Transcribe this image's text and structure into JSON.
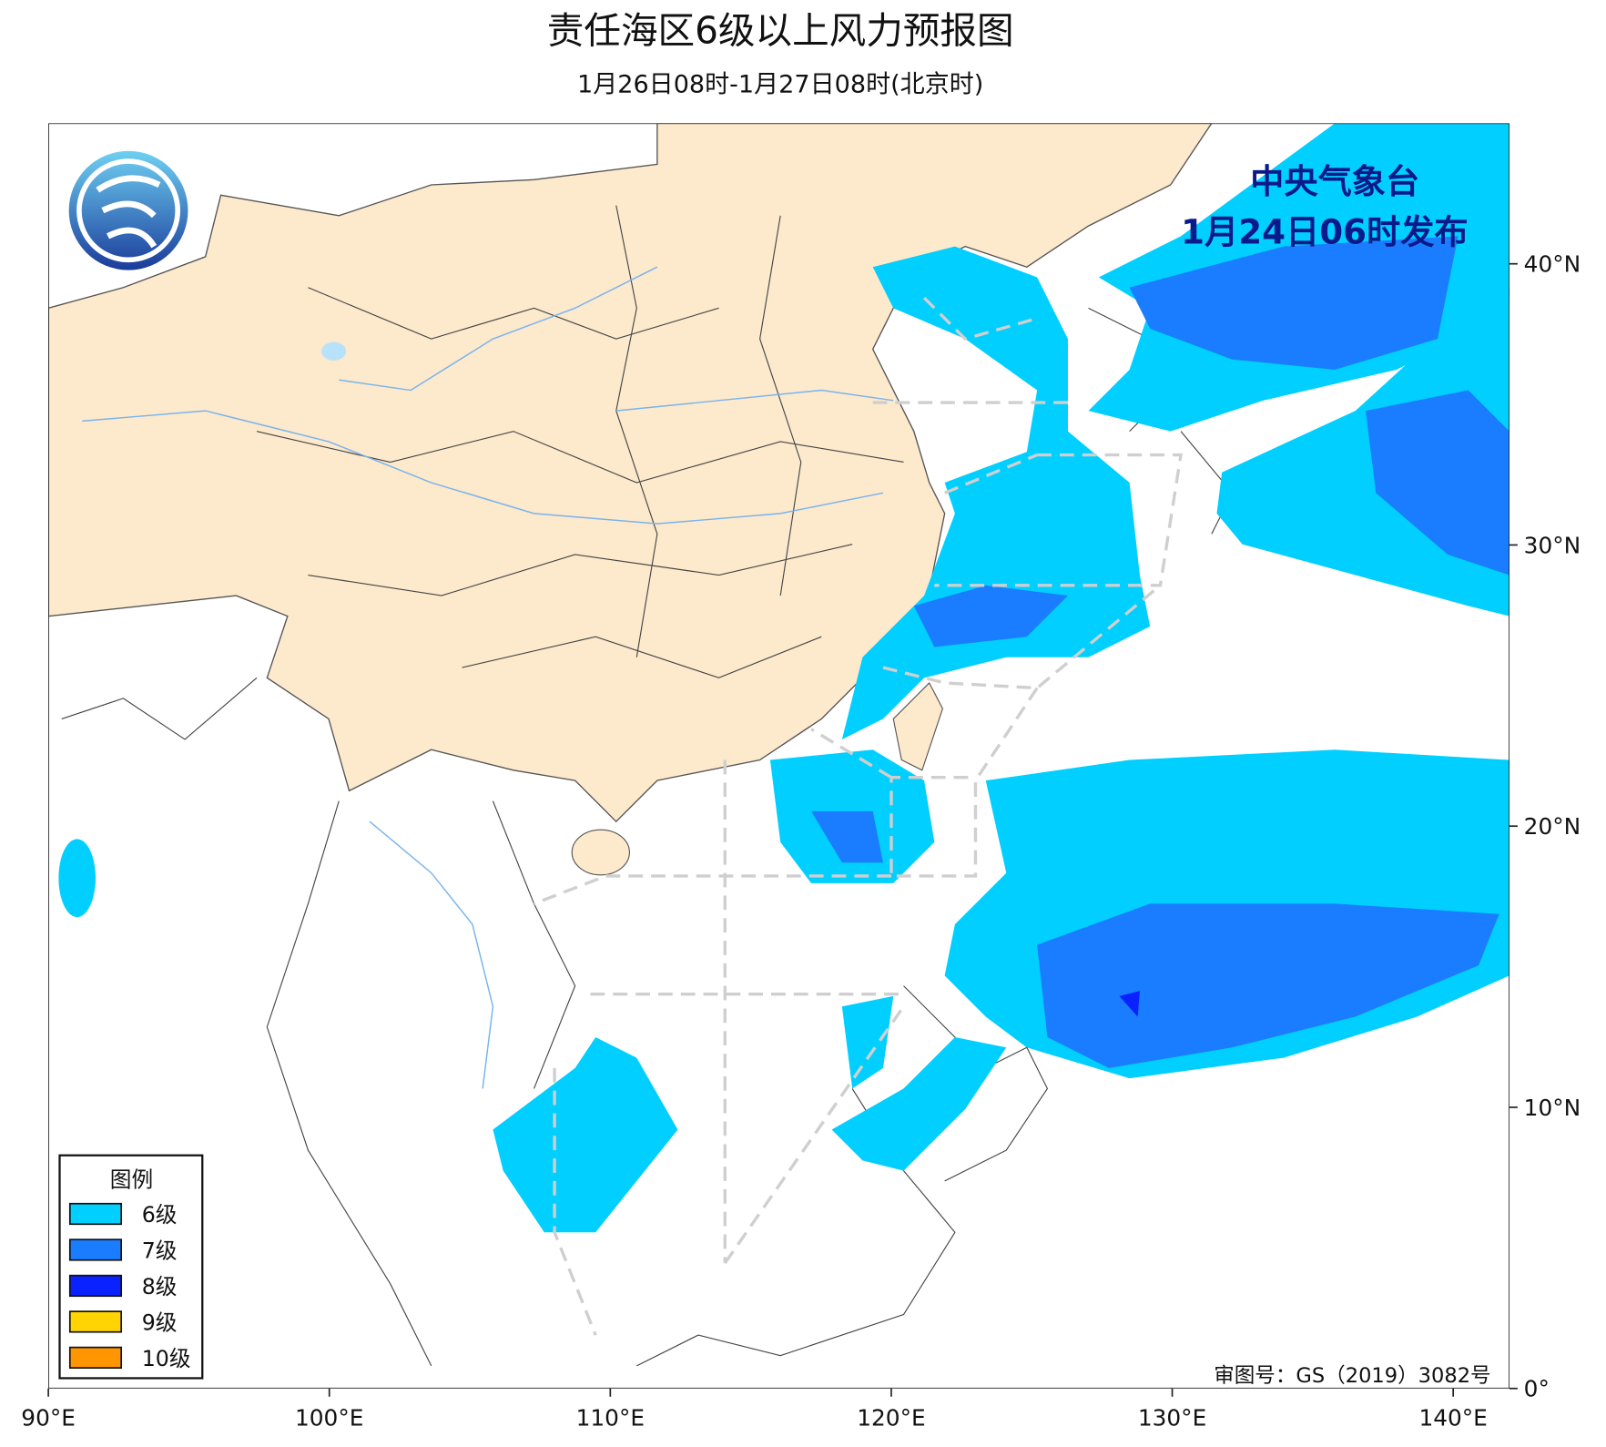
{
  "header": {
    "title": "责任海区6级以上风力预报图",
    "subtitle": "1月26日08时-1月27日08时(北京时)"
  },
  "issuer": {
    "name": "中央气象台",
    "time": "1月24日06时发布"
  },
  "map": {
    "xlim": [
      90,
      142
    ],
    "ylim": [
      0,
      45
    ],
    "xticks": [
      {
        "value": 90,
        "label": "90°E"
      },
      {
        "value": 100,
        "label": "100°E"
      },
      {
        "value": 110,
        "label": "110°E"
      },
      {
        "value": 120,
        "label": "120°E"
      },
      {
        "value": 130,
        "label": "130°E"
      },
      {
        "value": 140,
        "label": "140°E"
      }
    ],
    "yticks": [
      {
        "value": 0,
        "label": "0°"
      },
      {
        "value": 10,
        "label": "10°N"
      },
      {
        "value": 20,
        "label": "20°N"
      },
      {
        "value": 30,
        "label": "30°N"
      },
      {
        "value": 40,
        "label": "40°N"
      }
    ]
  },
  "legend": {
    "title": "图例",
    "items": [
      {
        "label": "6级",
        "color": "#00cfff"
      },
      {
        "label": "7级",
        "color": "#1a7dff"
      },
      {
        "label": "8级",
        "color": "#0a22ff"
      },
      {
        "label": "9级",
        "color": "#ffd400"
      },
      {
        "label": "10级",
        "color": "#ff9500"
      }
    ]
  },
  "approval": "审图号：GS（2019）3082号"
}
